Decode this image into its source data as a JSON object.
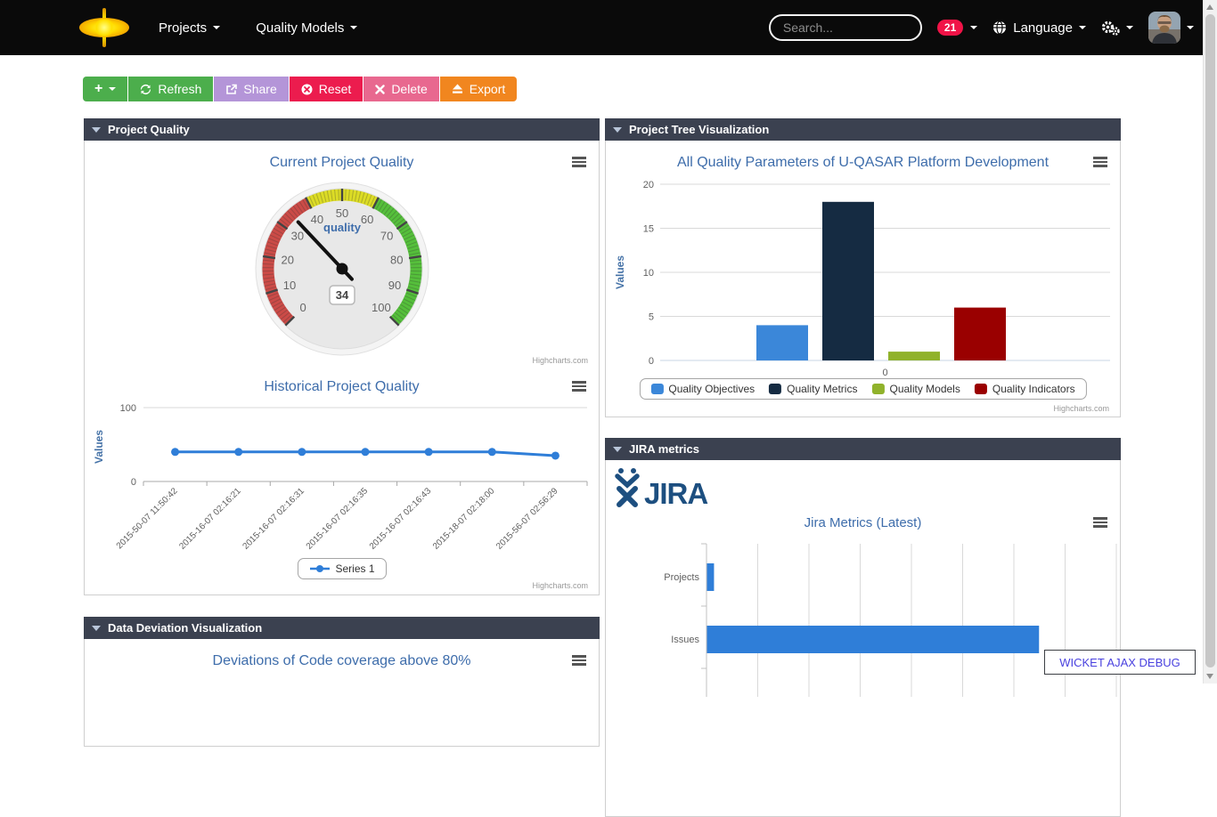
{
  "navbar": {
    "menus": [
      {
        "label": "Projects"
      },
      {
        "label": "Quality Models"
      }
    ],
    "search_placeholder": "Search...",
    "notification_count": "21",
    "language_label": "Language"
  },
  "toolbar": {
    "add_label": "+",
    "refresh_label": "Refresh",
    "share_label": "Share",
    "reset_label": "Reset",
    "delete_label": "Delete",
    "export_label": "Export"
  },
  "panels": {
    "project_quality": {
      "title": "Project Quality"
    },
    "project_tree": {
      "title": "Project Tree Visualization"
    },
    "jira": {
      "title": "JIRA metrics",
      "logo_text": "JIRA"
    },
    "data_deviation": {
      "title": "Data Deviation Visualization"
    }
  },
  "charts_credit": "Highcharts.com",
  "wicket_debug_label": "WICKET AJAX DEBUG",
  "chart_data": [
    {
      "id": "current-project-quality",
      "type": "gauge",
      "title": "Current Project Quality",
      "series_label": "quality",
      "value": 34,
      "min": 0,
      "max": 100,
      "tick_interval": 10,
      "bands": [
        {
          "from": 0,
          "to": 40,
          "color": "#cb4b47"
        },
        {
          "from": 40,
          "to": 60,
          "color": "#dcdc25"
        },
        {
          "from": 60,
          "to": 100,
          "color": "#55bf3b"
        }
      ]
    },
    {
      "id": "historical-project-quality",
      "type": "line",
      "title": "Historical Project Quality",
      "ylabel": "Values",
      "ylim": [
        0,
        100
      ],
      "yticks": [
        0,
        100
      ],
      "categories": [
        "2015-50-07 11:50:42",
        "2015-16-07 02:16:21",
        "2015-16-07 02:16:31",
        "2015-16-07 02:16:35",
        "2015-16-07 02:16:43",
        "2015-18-07 02:18:00",
        "2015-56-07 02:56:29"
      ],
      "series": [
        {
          "name": "Series 1",
          "color": "#2f7ed8",
          "values": [
            40,
            40,
            40,
            40,
            40,
            40,
            35
          ]
        }
      ],
      "legend_position": "bottom"
    },
    {
      "id": "all-quality-parameters",
      "type": "bar",
      "title": "All Quality Parameters of U-QASAR Platform Development",
      "ylabel": "Values",
      "ylim": [
        0,
        20
      ],
      "yticks": [
        0,
        5,
        10,
        15,
        20
      ],
      "categories": [
        "0"
      ],
      "series": [
        {
          "name": "Quality Objectives",
          "color": "#3b87d9",
          "values": [
            4
          ]
        },
        {
          "name": "Quality Metrics",
          "color": "#152b42",
          "values": [
            18
          ]
        },
        {
          "name": "Quality Models",
          "color": "#90b22b",
          "values": [
            1
          ]
        },
        {
          "name": "Quality Indicators",
          "color": "#9a0000",
          "values": [
            6
          ]
        }
      ],
      "legend_position": "bottom"
    },
    {
      "id": "jira-metrics-latest",
      "type": "bar-horizontal",
      "title": "Jira Metrics (Latest)",
      "categories": [
        "Projects",
        "Issues"
      ],
      "xlim": [
        0,
        58
      ],
      "grid_divisions": 8,
      "series": [
        {
          "name": "Jira",
          "color": "#2f7ed8",
          "values": [
            1,
            47
          ]
        }
      ]
    },
    {
      "id": "deviations-code-coverage",
      "type": "line",
      "title": "Deviations of Code coverage above 80%"
    }
  ]
}
